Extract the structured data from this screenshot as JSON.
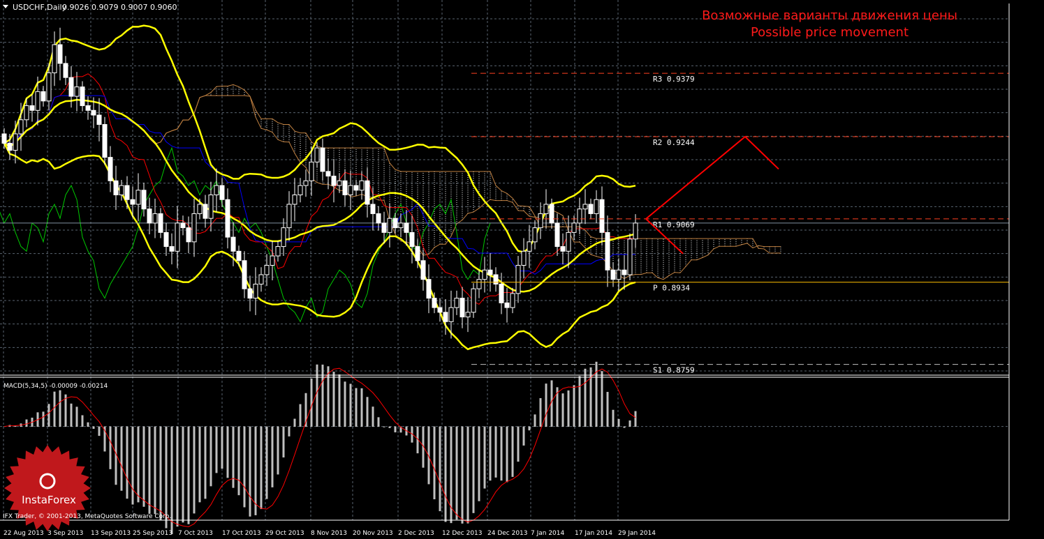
{
  "header": {
    "symbol": "USDCHF,Daily",
    "ohlc": "0.9026 0.9079 0.9007 0.9060"
  },
  "annotation": {
    "line1": "Возможные варианты движения цены",
    "line2": "Possible price movement"
  },
  "copyright": "IFX Trader, © 2001-2013, MetaQuotes Software Corp.",
  "logo": {
    "text": "InstaForex"
  },
  "colors": {
    "background": "#000000",
    "bull": "#ffffff",
    "bear": "#ffffff",
    "bollinger": "#ffff00",
    "tenkan": "#ff0000",
    "kijun": "#0000ff",
    "chikou": "#00c800",
    "cloud": "#ffffff",
    "macd_hist": "#c0c0c0",
    "macd_signal": "#ff0000",
    "pivot_resistance": "#ff4020",
    "pivot": "#ffc000",
    "projection": "#ff0000",
    "axis_text": "#ffffff"
  },
  "chart_data": [
    {
      "type": "candlestick",
      "title": "USDCHF,Daily",
      "ylim": [
        0.8745,
        0.9495
      ],
      "y_ticks": [
        "0.9495",
        "0.9445",
        "0.9395",
        "0.9345",
        "0.9295",
        "0.9245",
        "0.9195",
        "0.9145",
        "0.9095",
        "0.9045",
        "0.8995",
        "0.8945",
        "0.8895",
        "0.8845",
        "0.8795",
        "0.8745"
      ],
      "x_ticks": [
        "22 Aug 2013",
        "3 Sep 2013",
        "13 Sep 2013",
        "25 Sep 2013",
        "7 Oct 2013",
        "17 Oct 2013",
        "29 Oct 2013",
        "8 Nov 2013",
        "20 Nov 2013",
        "2 Dec 2013",
        "12 Dec 2013",
        "24 Dec 2013",
        "7 Jan 2014",
        "17 Jan 2014",
        "29 Jan 2014"
      ],
      "current_price": "0.9060",
      "last_bar": {
        "open": 0.9026,
        "high": 0.9079,
        "low": 0.9007,
        "close": 0.906
      },
      "closes": [
        0.923,
        0.9215,
        0.925,
        0.928,
        0.931,
        0.93,
        0.934,
        0.932,
        0.938,
        0.944,
        0.94,
        0.937,
        0.933,
        0.935,
        0.931,
        0.93,
        0.929,
        0.927,
        0.92,
        0.915,
        0.912,
        0.914,
        0.911,
        0.91,
        0.913,
        0.909,
        0.906,
        0.908,
        0.904,
        0.901,
        0.9,
        0.906,
        0.905,
        0.902,
        0.908,
        0.91,
        0.907,
        0.912,
        0.914,
        0.911,
        0.903,
        0.9,
        0.898,
        0.892,
        0.89,
        0.893,
        0.895,
        0.897,
        0.899,
        0.901,
        0.905,
        0.91,
        0.912,
        0.914,
        0.915,
        0.919,
        0.922,
        0.917,
        0.916,
        0.914,
        0.915,
        0.912,
        0.914,
        0.913,
        0.915,
        0.91,
        0.908,
        0.906,
        0.904,
        0.907,
        0.905,
        0.906,
        0.904,
        0.901,
        0.898,
        0.894,
        0.89,
        0.888,
        0.887,
        0.885,
        0.888,
        0.89,
        0.886,
        0.887,
        0.892,
        0.894,
        0.896,
        0.895,
        0.893,
        0.889,
        0.888,
        0.891,
        0.897,
        0.9,
        0.902,
        0.905,
        0.908,
        0.91,
        0.906,
        0.901,
        0.9,
        0.904,
        0.906,
        0.909,
        0.91,
        0.908,
        0.911,
        0.904,
        0.896,
        0.894,
        0.896,
        0.895,
        0.9026,
        0.906
      ],
      "indicators": [
        "Bollinger Bands",
        "Ichimoku Kinko Hyo"
      ],
      "pivots": [
        {
          "label": "R3",
          "value": "0.9379",
          "style": "dashed"
        },
        {
          "label": "R2",
          "value": "0.9244",
          "style": "dashed"
        },
        {
          "label": "R1",
          "value": "0.9069",
          "style": "dashed"
        },
        {
          "label": "P",
          "value": "0.8934",
          "style": "solid"
        },
        {
          "label": "S1",
          "value": "0.8759",
          "style": "dashed"
        }
      ],
      "projection": {
        "up_path": [
          0.9069,
          0.9244,
          0.9175
        ],
        "down_path": [
          0.9069,
          0.8995
        ]
      }
    },
    {
      "type": "bar",
      "title": "MACD(5,34,5) -0.00009 -0.00214",
      "params": "5,34,5",
      "values": {
        "macd": "-0.00009",
        "signal": "-0.00214"
      },
      "ylim": [
        -0.01636,
        0.00774
      ],
      "y_ticks": [
        "0.00774",
        "0.00",
        "-0.01636"
      ]
    }
  ]
}
